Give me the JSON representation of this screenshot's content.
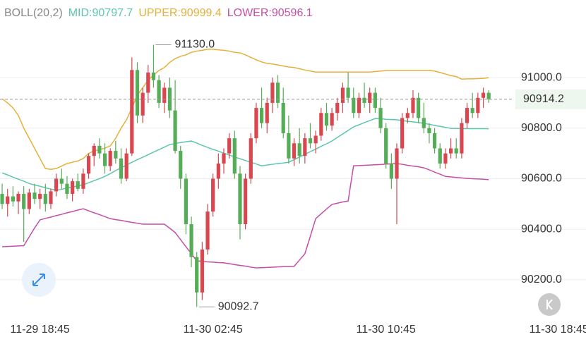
{
  "chart_data": {
    "type": "candlestick",
    "indicator": "BOLL(20,2)",
    "up_color": "#d8474f",
    "down_color": "#55ad58",
    "ylim": [
      90038,
      91307
    ],
    "xlim": [
      -0.4,
      108
    ],
    "yticks": [
      {
        "value": 90200,
        "label": "90200.0"
      },
      {
        "value": 90400,
        "label": "90400.0"
      },
      {
        "value": 90600,
        "label": "90600.0"
      },
      {
        "value": 90800,
        "label": "90800.0"
      },
      {
        "value": 91000,
        "label": "91000.0"
      }
    ],
    "xticks": [
      {
        "value": 7,
        "label": "11-29 18:45"
      },
      {
        "value": 39,
        "label": "11-30 02:45"
      },
      {
        "value": 71,
        "label": "11-30 10:45"
      },
      {
        "value": 103,
        "label": "11-30 18:45"
      }
    ],
    "grid": true,
    "last_price": 90914.2,
    "high_annotation": "91130.0",
    "low_annotation": "90092.7",
    "candles": [
      [
        90540,
        90580,
        90480,
        90500
      ],
      [
        90500,
        90560,
        90450,
        90530
      ],
      [
        90530,
        90570,
        90490,
        90510
      ],
      [
        90510,
        90550,
        90460,
        90540
      ],
      [
        90540,
        90570,
        90350,
        90480
      ],
      [
        90480,
        90560,
        90460,
        90545
      ],
      [
        90545,
        90580,
        90500,
        90520
      ],
      [
        90520,
        90560,
        90480,
        90540
      ],
      [
        90540,
        90580,
        90470,
        90500
      ],
      [
        90500,
        90560,
        90480,
        90550
      ],
      [
        90550,
        90620,
        90530,
        90600
      ],
      [
        90600,
        90640,
        90560,
        90580
      ],
      [
        90580,
        90610,
        90520,
        90540
      ],
      [
        90540,
        90600,
        90510,
        90590
      ],
      [
        90590,
        90620,
        90550,
        90560
      ],
      [
        90560,
        90640,
        90540,
        90620
      ],
      [
        90620,
        90700,
        90600,
        90690
      ],
      [
        90690,
        90740,
        90650,
        90730
      ],
      [
        90730,
        90760,
        90680,
        90700
      ],
      [
        90700,
        90740,
        90620,
        90650
      ],
      [
        90650,
        90720,
        90630,
        90710
      ],
      [
        90710,
        90750,
        90660,
        90680
      ],
      [
        90680,
        90720,
        90580,
        90600
      ],
      [
        90600,
        90720,
        90590,
        90700
      ],
      [
        90700,
        91080,
        90690,
        91030
      ],
      [
        91030,
        91060,
        90820,
        90850
      ],
      [
        90850,
        90960,
        90820,
        90940
      ],
      [
        90940,
        91050,
        90900,
        91020
      ],
      [
        91020,
        91130,
        90960,
        90990
      ],
      [
        90990,
        91010,
        90880,
        90900
      ],
      [
        90900,
        90980,
        90860,
        90960
      ],
      [
        90960,
        91000,
        90840,
        90870
      ],
      [
        90870,
        90990,
        90700,
        90710
      ],
      [
        90710,
        90730,
        90560,
        90600
      ],
      [
        90600,
        90620,
        90380,
        90420
      ],
      [
        90420,
        90450,
        90250,
        90290
      ],
      [
        90290,
        90310,
        90092.7,
        90150
      ],
      [
        90150,
        90350,
        90120,
        90320
      ],
      [
        90320,
        90500,
        90300,
        90470
      ],
      [
        90470,
        90620,
        90450,
        90600
      ],
      [
        90600,
        90700,
        90560,
        90660
      ],
      [
        90660,
        90720,
        90620,
        90700
      ],
      [
        90700,
        90780,
        90680,
        90760
      ],
      [
        90760,
        90790,
        90600,
        90620
      ],
      [
        90620,
        90650,
        90360,
        90420
      ],
      [
        90420,
        90620,
        90400,
        90600
      ],
      [
        90600,
        90780,
        90580,
        90760
      ],
      [
        90760,
        90900,
        90740,
        90880
      ],
      [
        90880,
        90960,
        90800,
        90820
      ],
      [
        90820,
        90920,
        90780,
        90900
      ],
      [
        90900,
        91000,
        90860,
        90980
      ],
      [
        90980,
        91010,
        90880,
        90900
      ],
      [
        90900,
        90960,
        90760,
        90780
      ],
      [
        90780,
        90850,
        90660,
        90680
      ],
      [
        90680,
        90760,
        90650,
        90740
      ],
      [
        90740,
        90800,
        90660,
        90690
      ],
      [
        90690,
        90780,
        90660,
        90760
      ],
      [
        90760,
        90820,
        90720,
        90740
      ],
      [
        90740,
        90790,
        90700,
        90770
      ],
      [
        90770,
        90880,
        90750,
        90860
      ],
      [
        90860,
        90900,
        90790,
        90810
      ],
      [
        90810,
        90880,
        90790,
        90860
      ],
      [
        90860,
        90920,
        90830,
        90900
      ],
      [
        90900,
        90980,
        90860,
        90960
      ],
      [
        90960,
        91020,
        90900,
        90920
      ],
      [
        90920,
        90960,
        90840,
        90860
      ],
      [
        90860,
        90940,
        90840,
        90920
      ],
      [
        90920,
        90980,
        90880,
        90900
      ],
      [
        90900,
        90960,
        90860,
        90940
      ],
      [
        90940,
        90960,
        90860,
        90880
      ],
      [
        90880,
        90920,
        90780,
        90800
      ],
      [
        90800,
        90820,
        90640,
        90660
      ],
      [
        90660,
        90700,
        90560,
        90600
      ],
      [
        90600,
        90740,
        90420,
        90720
      ],
      [
        90720,
        90860,
        90700,
        90840
      ],
      [
        90840,
        90880,
        90820,
        90860
      ],
      [
        90860,
        90950,
        90840,
        90920
      ],
      [
        90920,
        90940,
        90820,
        90840
      ],
      [
        90840,
        90900,
        90780,
        90800
      ],
      [
        90800,
        90820,
        90740,
        90780
      ],
      [
        90780,
        90800,
        90700,
        90720
      ],
      [
        90720,
        90740,
        90640,
        90660
      ],
      [
        90660,
        90720,
        90640,
        90700
      ],
      [
        90700,
        90760,
        90680,
        90720
      ],
      [
        90720,
        90760,
        90680,
        90700
      ],
      [
        90700,
        90840,
        90680,
        90820
      ],
      [
        90820,
        90900,
        90800,
        90880
      ],
      [
        90880,
        90940,
        90840,
        90860
      ],
      [
        90860,
        90940,
        90840,
        90920
      ],
      [
        90920,
        90960,
        90880,
        90940
      ],
      [
        90940,
        90950,
        90900,
        90914.2
      ]
    ],
    "bands": [
      {
        "name": "MID:90797.7",
        "color": "#5cc6ae",
        "values": [
          90623,
          90615,
          90606,
          90598,
          90590,
          90581,
          90575,
          90570,
          90564,
          90559,
          90554,
          90558,
          90563,
          90567,
          90572,
          90576,
          90584,
          90592,
          90600,
          90609,
          90620,
          90632,
          90643,
          90654,
          90665,
          90675,
          90685,
          90695,
          90705,
          90715,
          90725,
          90735,
          90739,
          90743,
          90746,
          90749,
          90741,
          90732,
          90724,
          90716,
          90709,
          90701,
          90694,
          90686,
          90679,
          90672,
          90665,
          90658,
          90651,
          90654,
          90657,
          90660,
          90662,
          90665,
          90675,
          90686,
          90696,
          90707,
          90717,
          90728,
          90738,
          90749,
          90763,
          90777,
          90791,
          90805,
          90813,
          90822,
          90830,
          90838,
          90837,
          90835,
          90834,
          90833,
          90830,
          90827,
          90825,
          90822,
          90819,
          90815,
          90811,
          90807,
          90803,
          90799,
          90799,
          90798,
          90798,
          90798,
          90798,
          90798,
          90797.7
        ]
      },
      {
        "name": "UPPER:90999.4",
        "color": "#e6b03a",
        "values": [
          90916,
          90900,
          90880,
          90850,
          90800,
          90760,
          90720,
          90680,
          90640,
          90637,
          90640,
          90650,
          90660,
          90665,
          90670,
          90680,
          90700,
          90710,
          90715,
          90721,
          90730,
          90760,
          90800,
          90833,
          90880,
          90930,
          90960,
          90990,
          91010,
          91028,
          91040,
          91060,
          91075,
          91084,
          91090,
          91100,
          91105,
          91108,
          91112,
          91112,
          91110,
          91108,
          91105,
          91100,
          91098,
          91090,
          91080,
          91070,
          91062,
          91056,
          91054,
          91050,
          91046,
          91042,
          91040,
          91035,
          91030,
          91026,
          91022,
          91022,
          91022,
          91022,
          91022,
          91022,
          91022,
          91022,
          91022,
          91022,
          91022,
          91024,
          91026,
          91028,
          91028,
          91028,
          91028,
          91028,
          91028,
          91028,
          91028,
          91028,
          91026,
          91020,
          91014,
          91008,
          91004,
          90994,
          90995,
          90995,
          90996,
          90997,
          90999.4
        ]
      },
      {
        "name": "LOWER:90596.1",
        "color": "#c64ea6",
        "values": [
          90331,
          90332,
          90333,
          90334,
          90335,
          90370,
          90405,
          90437,
          90443,
          90448,
          90454,
          90459,
          90465,
          90470,
          90476,
          90481,
          90473,
          90465,
          90458,
          90450,
          90442,
          90438,
          90435,
          90431,
          90427,
          90424,
          90420,
          90420,
          90420,
          90420,
          90420,
          90404,
          90387,
          90359,
          90331,
          90303,
          90275,
          90273,
          90271,
          90270,
          90268,
          90267,
          90264,
          90260,
          90257,
          90254,
          90250,
          90247,
          90248,
          90249,
          90250,
          90251,
          90252,
          90252,
          90253,
          90278,
          90303,
          90372,
          90442,
          90461,
          90480,
          90498,
          90503,
          90508,
          90512,
          90651,
          90652,
          90653,
          90654,
          90655,
          90656,
          90658,
          90659,
          90660,
          90657,
          90653,
          90650,
          90647,
          90643,
          90635,
          90626,
          90618,
          90609,
          90607,
          90605,
          90603,
          90601,
          90600,
          90599,
          90598,
          90596.1
        ]
      }
    ]
  }
}
